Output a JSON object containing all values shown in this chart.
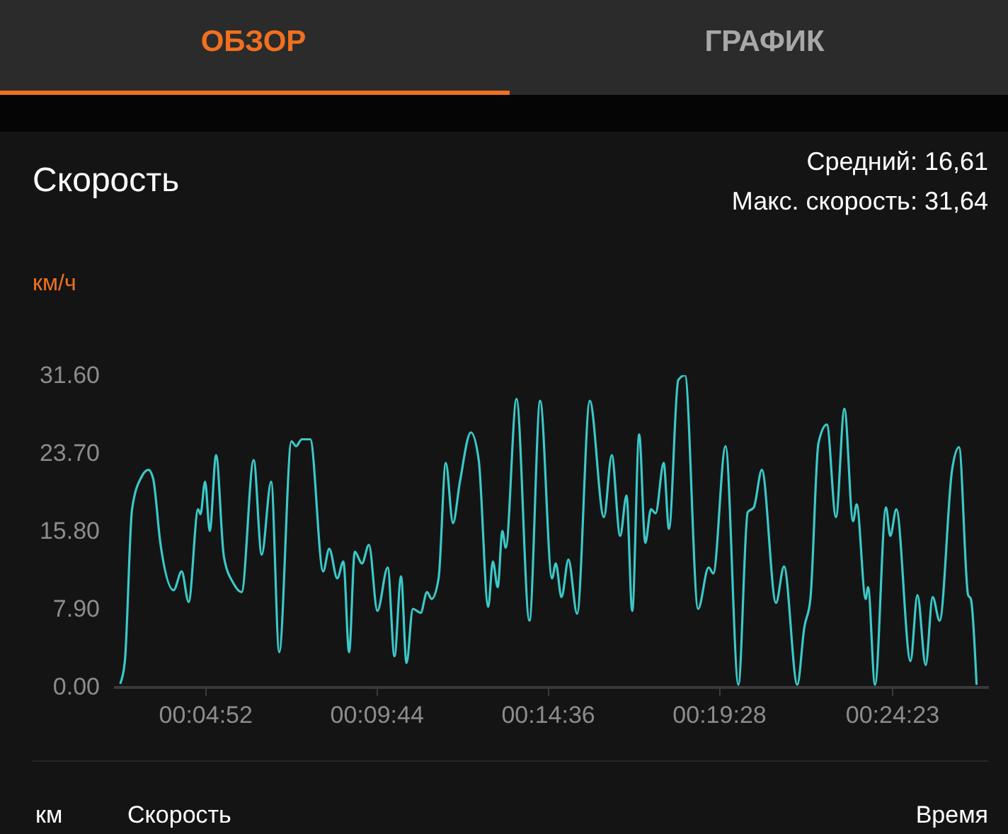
{
  "chart_data": {
    "type": "line",
    "title": "Скорость",
    "ylabel": "км/ч",
    "annotations": [
      "ОБЗОР",
      "ГРАФИК",
      "Средний: 16,61",
      "Макс. скорость: 31,64",
      "км",
      "Скорость",
      "Время"
    ],
    "x": [
      0.0409,
      0.0431,
      0.0465,
      0.051,
      0.0543,
      0.0565,
      0.0599,
      0.0662,
      0.07,
      0.0733,
      0.0778,
      0.0789,
      0.0811,
      0.0833,
      0.0863,
      0.09,
      0.0945,
      0.0984,
      0.1041,
      0.1079,
      0.1124,
      0.1162,
      0.122,
      0.1242,
      0.1269,
      0.1309,
      0.137,
      0.1399,
      0.1437,
      0.1466,
      0.1493,
      0.152,
      0.1554,
      0.1587,
      0.1627,
      0.1676,
      0.1708,
      0.1739,
      0.1765,
      0.1795,
      0.1832,
      0.1862,
      0.1884,
      0.1917,
      0.1951,
      0.1985,
      0.2018,
      0.207,
      0.2107,
      0.2152,
      0.2174,
      0.2197,
      0.2219,
      0.2235,
      0.2286,
      0.2347,
      0.2398,
      0.2454,
      0.2472,
      0.2499,
      0.2532,
      0.2573,
      0.2633,
      0.27,
      0.2737,
      0.2777,
      0.2807,
      0.2834,
      0.2867,
      0.2896,
      0.2923,
      0.2945,
      0.2983,
      0.3008,
      0.3052,
      0.3084,
      0.3146,
      0.3196,
      0.3218,
      0.3276,
      0.3337,
      0.3381,
      0.341,
      0.3448,
      0.3515,
      0.3553,
      0.3616,
      0.3649,
      0.3678,
      0.3716,
      0.3756,
      0.3799,
      0.3839,
      0.388,
      0.3897,
      0.394,
      0.3951,
      0.3984,
      0.4036,
      0.4056,
      0.4085,
      0.4152,
      0.4185,
      0.4224,
      0.4257,
      0.429,
      0.4349,
      0.4382,
      0.4425,
      0.4438,
      0.4465
    ],
    "series": [
      {
        "color": "#3cc8c8",
        "values": [
          0.3,
          2.6,
          18.0,
          21.3,
          22.0,
          21.1,
          14.6,
          9.8,
          11.7,
          8.6,
          18.0,
          17.5,
          20.8,
          15.8,
          23.5,
          13.2,
          10.5,
          9.6,
          23.0,
          13.4,
          20.8,
          3.5,
          24.9,
          24.4,
          25.1,
          25.1,
          11.7,
          14.0,
          11.0,
          12.7,
          3.5,
          13.7,
          12.5,
          14.4,
          7.7,
          12.1,
          3.1,
          11.2,
          2.4,
          7.9,
          7.5,
          9.6,
          8.9,
          11.0,
          22.7,
          16.6,
          20.8,
          25.8,
          23.0,
          8.1,
          12.7,
          10.1,
          15.8,
          14.1,
          29.2,
          6.7,
          29.0,
          11.0,
          12.5,
          9.1,
          12.9,
          7.4,
          29.0,
          17.2,
          23.5,
          15.3,
          19.4,
          7.7,
          25.6,
          14.6,
          18.0,
          17.6,
          22.7,
          16.0,
          31.1,
          31.6,
          7.9,
          12.1,
          11.5,
          24.4,
          0.2,
          17.7,
          18.2,
          22.0,
          8.5,
          12.2,
          0.2,
          6.0,
          8.9,
          24.7,
          26.6,
          17.2,
          28.2,
          16.8,
          18.5,
          8.9,
          10.1,
          0.2,
          18.2,
          15.3,
          18.0,
          2.6,
          9.3,
          2.2,
          9.1,
          6.7,
          22.0,
          24.3,
          9.3,
          8.9,
          0.2
        ]
      }
    ],
    "xlim": [
      0.0376,
      0.452
    ],
    "xticks": [
      {
        "value": 0.08111,
        "label": "00:04:52"
      },
      {
        "value": 0.16222,
        "label": "00:09:44"
      },
      {
        "value": 0.24333,
        "label": "00:14:36"
      },
      {
        "value": 0.32444,
        "label": "00:19:28"
      },
      {
        "value": 0.40639,
        "label": "00:24:23"
      }
    ],
    "ylim": [
      0,
      31.6
    ],
    "yticks": [
      {
        "value": 0,
        "label": "0.00"
      },
      {
        "value": 7.9,
        "label": "7.90"
      },
      {
        "value": 15.8,
        "label": "15.80"
      },
      {
        "value": 23.7,
        "label": "23.70"
      },
      {
        "value": 31.6,
        "label": "31.60"
      }
    ],
    "grid": false
  }
}
